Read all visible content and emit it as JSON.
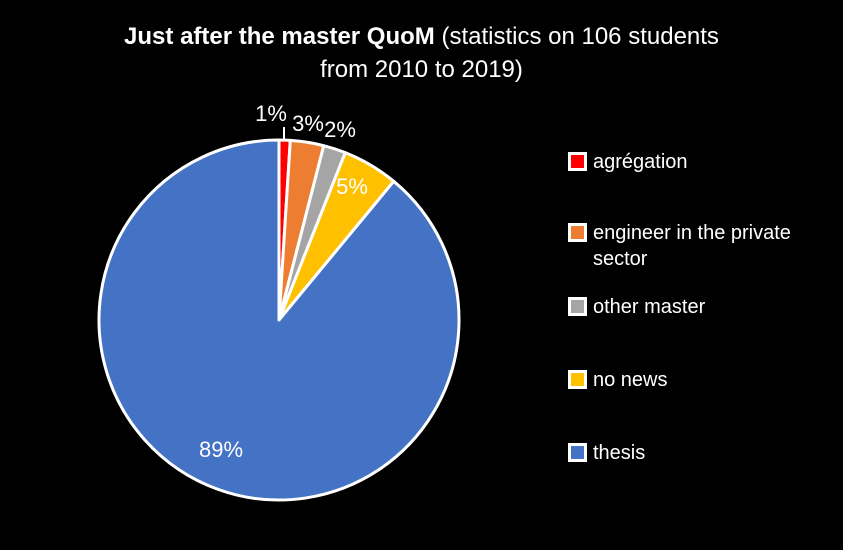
{
  "title": {
    "bold_part": "Just after the master QuoM",
    "regular_part": " (statistics on 106 students",
    "line2": "from 2010 to 2019)"
  },
  "chart_data": {
    "type": "pie",
    "title": "Just after the master QuoM (statistics on 106 students from 2010 to 2019)",
    "categories": [
      "agrégation",
      "engineer in the private sector",
      "other master",
      "no news",
      "thesis"
    ],
    "values": [
      1,
      3,
      2,
      5,
      89
    ],
    "unit": "percent",
    "labels": [
      "1%",
      "3%",
      "2%",
      "5%",
      "89%"
    ],
    "colors": [
      "#FF0000",
      "#ED7D31",
      "#A5A5A5",
      "#FFC000",
      "#4472C4"
    ],
    "slice_border_color": "#FFFFFF",
    "start_angle_deg": 0,
    "direction": "clockwise",
    "legend_position": "right",
    "background": "#000000",
    "label_color": "#FFFFFF"
  },
  "legend": {
    "items": [
      {
        "label": "agrégation",
        "color": "#FF0000"
      },
      {
        "label": "engineer in the private sector",
        "color": "#ED7D31"
      },
      {
        "label": "other master",
        "color": "#A5A5A5"
      },
      {
        "label": "no news",
        "color": "#FFC000"
      },
      {
        "label": "thesis",
        "color": "#4472C4"
      }
    ]
  }
}
